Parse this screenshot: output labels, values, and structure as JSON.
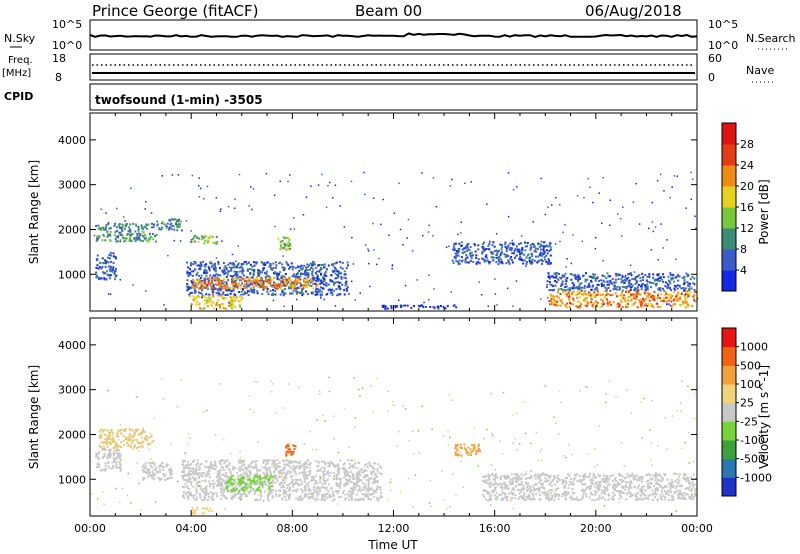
{
  "header": {
    "station": "Prince George (fitACF)",
    "beam": "Beam 00",
    "date": "06/Aug/2018"
  },
  "top_panels": {
    "nsky_label": "N.Sky",
    "nsky_tick_hi": "10^5",
    "nsky_tick_lo": "10^0",
    "nsearch_label": "N.Search",
    "nsearch_tick_hi": "10^5",
    "nsearch_tick_lo": "10^0",
    "freq_label": "Freq.",
    "freq_unit": "[MHz]",
    "freq_tick_hi": "18",
    "freq_tick_lo": "8",
    "nave_label": "Nave",
    "nave_tick_hi": "60",
    "nave_tick_lo": "0",
    "cpid_label": "CPID",
    "cpid_text": "twofsound (1-min) -3505"
  },
  "chart_data": [
    {
      "type": "heatmap",
      "name": "power",
      "ylabel": "Slant Range [km]",
      "ylim": [
        180,
        4600
      ],
      "yticks": [
        1000,
        2000,
        3000,
        4000
      ],
      "xlim": [
        0,
        24
      ],
      "colorbar": {
        "label": "Power [dB]",
        "ticks": [
          "4",
          "8",
          "12",
          "16",
          "20",
          "24",
          "28"
        ],
        "colors": [
          "#1428e6",
          "#3c5ac8",
          "#3c8c78",
          "#78c83c",
          "#e6d21e",
          "#f08c14",
          "#e63c14",
          "#dc1414"
        ]
      },
      "regions": [
        {
          "t0": 0.2,
          "t1": 2.6,
          "r0": 1750,
          "r1": 2150,
          "level": 2
        },
        {
          "t0": 0.2,
          "t1": 1.0,
          "r0": 900,
          "r1": 1500,
          "level": 1
        },
        {
          "t0": 2.6,
          "t1": 3.6,
          "r0": 2000,
          "r1": 2250,
          "level": 2
        },
        {
          "t0": 3.9,
          "t1": 5.0,
          "r0": 1700,
          "r1": 1900,
          "level": 3
        },
        {
          "t0": 3.8,
          "t1": 10.2,
          "r0": 550,
          "r1": 1300,
          "level": 1
        },
        {
          "t0": 4.0,
          "t1": 9.0,
          "r0": 700,
          "r1": 950,
          "level": 5
        },
        {
          "t0": 3.9,
          "t1": 6.0,
          "r0": 250,
          "r1": 550,
          "level": 4
        },
        {
          "t0": 7.4,
          "t1": 7.9,
          "r0": 1550,
          "r1": 1850,
          "level": 3
        },
        {
          "t0": 14.3,
          "t1": 18.2,
          "r0": 1250,
          "r1": 1750,
          "level": 1
        },
        {
          "t0": 18.0,
          "t1": 23.9,
          "r0": 650,
          "r1": 1050,
          "level": 1
        },
        {
          "t0": 18.1,
          "t1": 23.9,
          "r0": 280,
          "r1": 650,
          "level": 5
        },
        {
          "t0": 11.5,
          "t1": 14.5,
          "r0": 250,
          "r1": 330,
          "level": 0
        }
      ]
    },
    {
      "type": "heatmap",
      "name": "velocity",
      "ylabel": "Slant Range [km]",
      "xlabel": "Time UT",
      "ylim": [
        180,
        4600
      ],
      "yticks": [
        1000,
        2000,
        3000,
        4000
      ],
      "xlim": [
        0,
        24
      ],
      "xticks": [
        "00:00",
        "04:00",
        "08:00",
        "12:00",
        "16:00",
        "20:00",
        "00:00"
      ],
      "colorbar": {
        "label": "Velocity [m s^-1]",
        "ticks": [
          "1000",
          "500",
          "100",
          "25",
          "-25",
          "-100",
          "-500",
          "-1000"
        ],
        "colors": [
          "#1e32c8",
          "#2878b4",
          "#3ca03c",
          "#78d23c",
          "#c8c8c8",
          "#f0d278",
          "#f0a03c",
          "#f06414",
          "#e61414"
        ]
      },
      "regions": [
        {
          "t0": 0.3,
          "t1": 2.5,
          "r0": 1700,
          "r1": 2150,
          "color": "#e6c878"
        },
        {
          "t0": 0.2,
          "t1": 1.2,
          "r0": 1200,
          "r1": 1700,
          "color": "#c8c8c8"
        },
        {
          "t0": 2.0,
          "t1": 3.2,
          "r0": 1000,
          "r1": 1400,
          "color": "#c8c8c8"
        },
        {
          "t0": 3.6,
          "t1": 11.5,
          "r0": 550,
          "r1": 1450,
          "color": "#c8c8c8"
        },
        {
          "t0": 5.3,
          "t1": 7.2,
          "r0": 750,
          "r1": 1100,
          "color": "#78d23c"
        },
        {
          "t0": 7.7,
          "t1": 8.1,
          "r0": 1550,
          "r1": 1800,
          "color": "#f06414"
        },
        {
          "t0": 14.4,
          "t1": 15.4,
          "r0": 1550,
          "r1": 1800,
          "color": "#f0a03c"
        },
        {
          "t0": 15.5,
          "t1": 23.9,
          "r0": 550,
          "r1": 1150,
          "color": "#c8c8c8"
        },
        {
          "t0": 3.9,
          "t1": 4.8,
          "r0": 250,
          "r1": 400,
          "color": "#f0d278"
        }
      ]
    }
  ]
}
